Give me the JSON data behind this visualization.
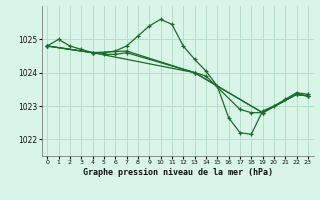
{
  "bg_color": "#d8f5e8",
  "grid_color": "#b8ddc8",
  "line_color": "#1a6b2a",
  "marker_color": "#1a6b2a",
  "title": "Graphe pression niveau de la mer (hPa)",
  "xlim": [
    -0.5,
    23.5
  ],
  "ylim": [
    1021.5,
    1026.0
  ],
  "yticks": [
    1022,
    1023,
    1024,
    1025
  ],
  "xticks": [
    0,
    1,
    2,
    3,
    4,
    5,
    6,
    7,
    8,
    9,
    10,
    11,
    12,
    13,
    14,
    15,
    16,
    17,
    18,
    19,
    20,
    21,
    22,
    23
  ],
  "series": [
    {
      "x": [
        0,
        1,
        2,
        3,
        4,
        5,
        6,
        7,
        8,
        9,
        10,
        11,
        12,
        13,
        14,
        15,
        16,
        17,
        18,
        19,
        20,
        21,
        22,
        23
      ],
      "y": [
        1024.8,
        1025.0,
        1024.8,
        1024.7,
        1024.6,
        1024.6,
        1024.65,
        1024.8,
        1025.1,
        1025.4,
        1025.6,
        1025.45,
        1024.8,
        1024.4,
        1024.05,
        1023.6,
        1022.65,
        1022.2,
        1022.15,
        1022.85,
        1023.0,
        1023.2,
        1023.4,
        1023.35
      ]
    },
    {
      "x": [
        0,
        4,
        5,
        6,
        7,
        13,
        14,
        17,
        18,
        19,
        22,
        23
      ],
      "y": [
        1024.8,
        1024.6,
        1024.55,
        1024.55,
        1024.6,
        1024.0,
        1023.9,
        1022.9,
        1022.8,
        1022.8,
        1023.35,
        1023.3
      ]
    },
    {
      "x": [
        0,
        4,
        7,
        13,
        19,
        22,
        23
      ],
      "y": [
        1024.8,
        1024.6,
        1024.65,
        1024.0,
        1022.8,
        1023.35,
        1023.3
      ]
    },
    {
      "x": [
        0,
        4,
        13,
        19,
        22,
        23
      ],
      "y": [
        1024.8,
        1024.6,
        1024.0,
        1022.8,
        1023.35,
        1023.3
      ]
    }
  ]
}
